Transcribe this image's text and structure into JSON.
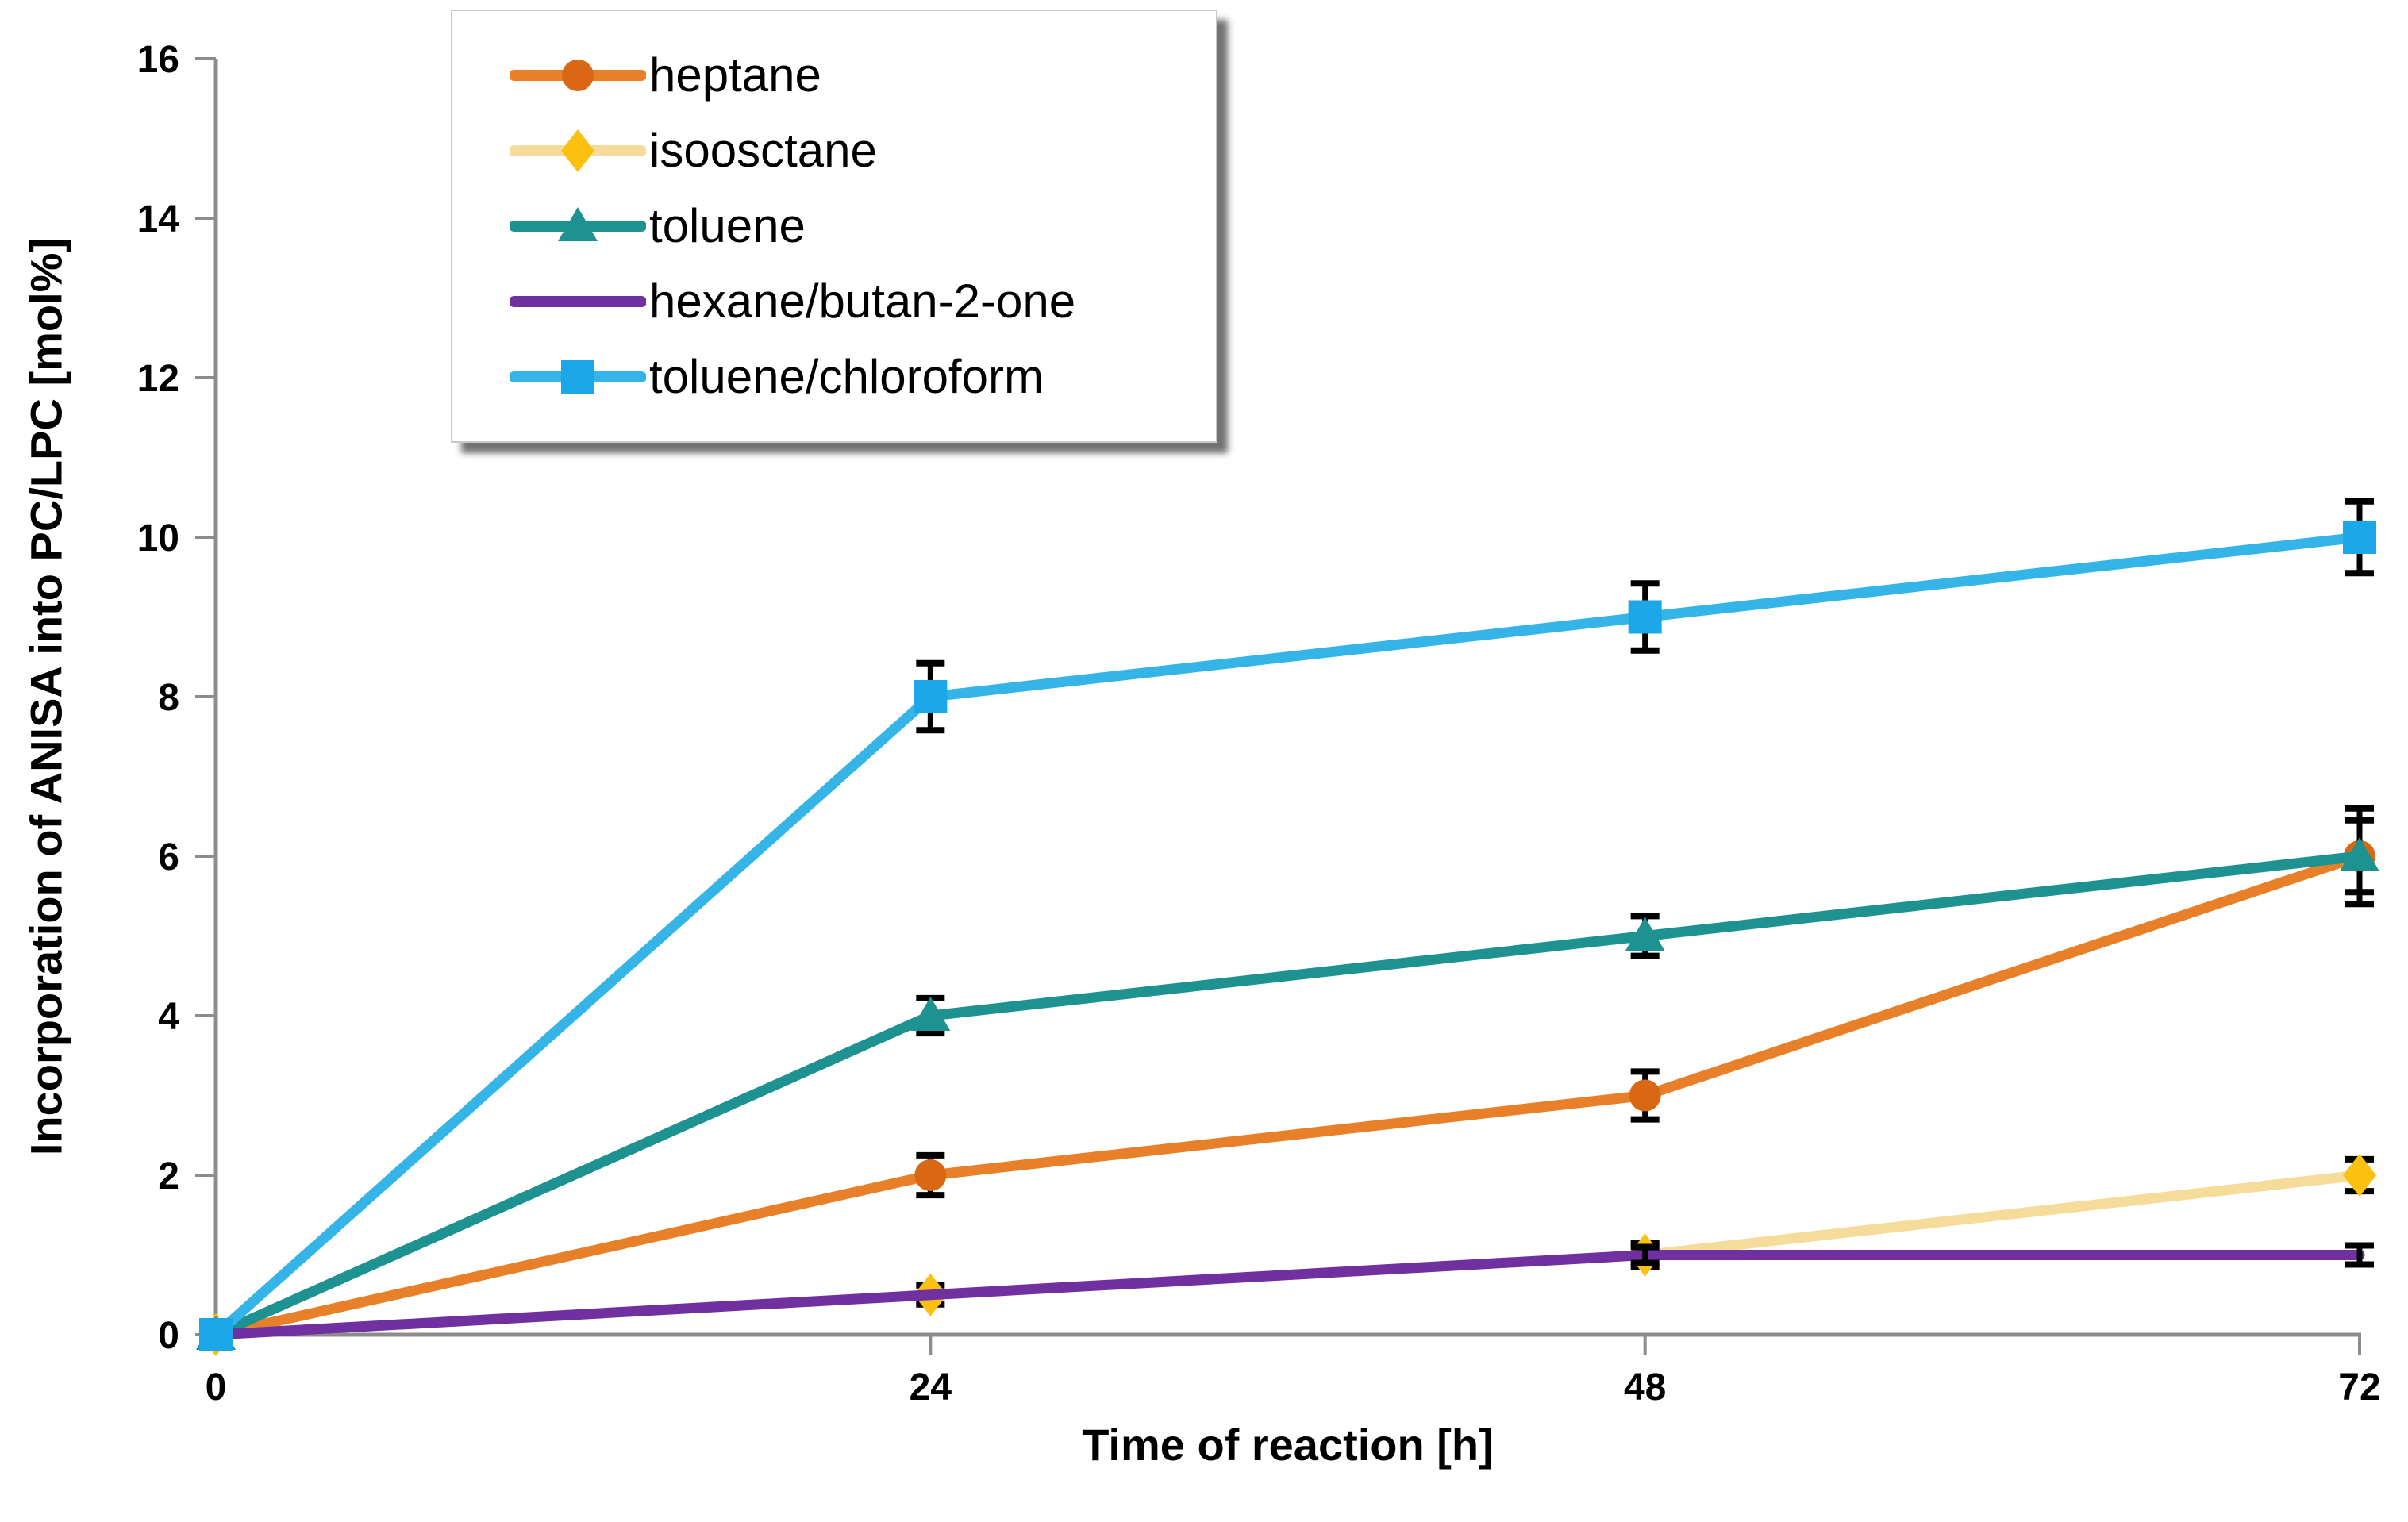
{
  "chart_data": {
    "type": "line",
    "title": "",
    "xlabel": "Time of reaction [h]",
    "ylabel": "Incorporation of ANISA into PC/LPC [mol%]",
    "x": [
      0,
      24,
      48,
      72
    ],
    "x_tick_labels": [
      "0",
      "24",
      "48",
      "72"
    ],
    "xlim": [
      0,
      72
    ],
    "ylim": [
      0,
      16
    ],
    "y_tick_step": 2,
    "y_ticks": [
      0,
      2,
      4,
      6,
      8,
      10,
      12,
      14,
      16
    ],
    "y_tick_labels": [
      "0",
      "2",
      "4",
      "6",
      "8",
      "10",
      "12",
      "14",
      "16"
    ],
    "grid": false,
    "legend_position": "top-left",
    "series": [
      {
        "name": "heptane",
        "marker": "circle",
        "line_color": "#E8802A",
        "marker_color": "#D96713",
        "values": [
          0,
          2,
          3,
          6
        ],
        "errors": [
          0,
          0.25,
          0.3,
          0.6
        ]
      },
      {
        "name": "isoosctane",
        "marker": "diamond",
        "line_color": "#F6DC9A",
        "marker_color": "#FCC011",
        "values": [
          0,
          0.5,
          1,
          2
        ],
        "errors": [
          0,
          0.12,
          0.15,
          0.2
        ]
      },
      {
        "name": "toluene",
        "marker": "triangle",
        "line_color": "#1E9191",
        "marker_color": "#1E9191",
        "values": [
          0,
          4,
          5,
          6
        ],
        "errors": [
          0,
          0.22,
          0.25,
          0.45
        ]
      },
      {
        "name": "hexane/butan-2-one",
        "marker": "none",
        "line_color": "#7030A0",
        "marker_color": "#7030A0",
        "values": [
          0,
          0.5,
          1,
          1
        ],
        "errors": [
          0,
          0,
          0.1,
          0.12
        ]
      },
      {
        "name": "toluene/chloroform",
        "marker": "square",
        "line_color": "#35B4E8",
        "marker_color": "#1BA7E8",
        "values": [
          0,
          8,
          9,
          10
        ],
        "errors": [
          0,
          0.42,
          0.42,
          0.45
        ]
      }
    ],
    "axis_color": "#8C8C8C",
    "error_bar_color": "#000000",
    "text_color": "#000000"
  }
}
